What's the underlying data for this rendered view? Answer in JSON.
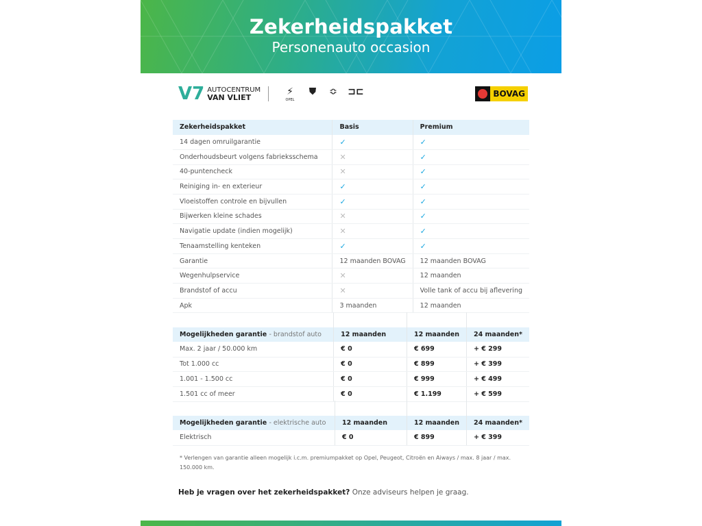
{
  "header": {
    "title": "Zekerheidspakket",
    "subtitle": "Personenauto occasion"
  },
  "logos": {
    "dealer_line1": "AUTOCENTRUM",
    "dealer_line2": "VAN VLIET",
    "brands": [
      "OPEL",
      "PEUGEOT",
      "CITROËN",
      "AIWAYS"
    ],
    "bovag": "BOVAG"
  },
  "table1": {
    "headers": [
      "Zekerheidspakket",
      "Basis",
      "Premium"
    ],
    "rows": [
      {
        "label": "14 dagen omruilgarantie",
        "basis": "✓",
        "premium": "✓"
      },
      {
        "label": "Onderhoudsbeurt volgens fabrieksschema",
        "basis": "✕",
        "premium": "✓"
      },
      {
        "label": "40-puntencheck",
        "basis": "✕",
        "premium": "✓"
      },
      {
        "label": "Reiniging in- en exterieur",
        "basis": "✓",
        "premium": "✓"
      },
      {
        "label": "Vloeistoffen controle en bijvullen",
        "basis": "✓",
        "premium": "✓"
      },
      {
        "label": "Bijwerken kleine schades",
        "basis": "✕",
        "premium": "✓"
      },
      {
        "label": "Navigatie update (indien mogelijk)",
        "basis": "✕",
        "premium": "✓"
      },
      {
        "label": "Tenaamstelling kenteken",
        "basis": "✓",
        "premium": "✓"
      },
      {
        "label": "Garantie",
        "basis": "12 maanden BOVAG",
        "premium": "12 maanden BOVAG"
      },
      {
        "label": "Wegenhulpservice",
        "basis": "✕",
        "premium": "12 maanden"
      },
      {
        "label": "Brandstof of accu",
        "basis": "✕",
        "premium": "Volle tank of accu bij aflevering"
      },
      {
        "label": "Apk",
        "basis": "3 maanden",
        "premium": "12 maanden"
      }
    ]
  },
  "table2": {
    "title": "Mogelijkheden garantie",
    "subtitle": "- brandstof auto",
    "headers": [
      "12 maanden",
      "12 maanden",
      "24 maanden*"
    ],
    "rows": [
      {
        "label": "Max. 2 jaar / 50.000 km",
        "c1": "€ 0",
        "c2": "€ 699",
        "c3": "+ € 299"
      },
      {
        "label": "Tot 1.000 cc",
        "c1": "€ 0",
        "c2": "€ 899",
        "c3": "+ € 399"
      },
      {
        "label": "1.001 - 1.500 cc",
        "c1": "€ 0",
        "c2": "€ 999",
        "c3": "+ € 499"
      },
      {
        "label": "1.501 cc of meer",
        "c1": "€ 0",
        "c2": "€ 1.199",
        "c3": "+ € 599"
      }
    ]
  },
  "table3": {
    "title": "Mogelijkheden garantie",
    "subtitle": "- elektrische auto",
    "headers": [
      "12 maanden",
      "12 maanden",
      "24 maanden*"
    ],
    "rows": [
      {
        "label": "Elektrisch",
        "c1": "€ 0",
        "c2": "€ 899",
        "c3": "+ € 399"
      }
    ]
  },
  "footnote": "* Verlengen van garantie alleen mogelijk i.c.m. premiumpakket op Opel, Peugeot, Citroën en Aiways / max. 8 jaar / max. 150.000 km.",
  "question": {
    "bold": "Heb je vragen over het zekerheidspakket?",
    "rest": "Onze adviseurs helpen je graag."
  },
  "colors": {
    "check": "#1aa7e0",
    "header_bg": "#e3f2fb",
    "gradient_start": "#4cb648",
    "gradient_end": "#0b9ee6"
  }
}
